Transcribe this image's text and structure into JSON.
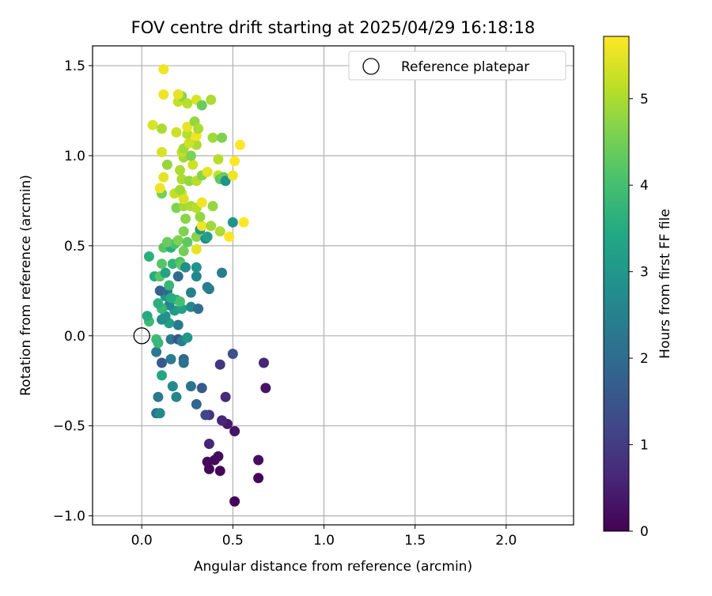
{
  "chart_data": {
    "type": "scatter",
    "title": "FOV centre drift starting at 2025/04/29 16:18:18",
    "xlabel": "Angular distance from reference (arcmin)",
    "ylabel": "Rotation from reference (arcmin)",
    "xlim": [
      -0.27,
      2.37
    ],
    "ylim": [
      -1.05,
      1.61
    ],
    "xticks": [
      0.0,
      0.5,
      1.0,
      1.5,
      2.0
    ],
    "xtick_labels": [
      "0.0",
      "0.5",
      "1.0",
      "1.5",
      "2.0"
    ],
    "yticks": [
      -1.0,
      -0.5,
      0.0,
      0.5,
      1.0,
      1.5
    ],
    "ytick_labels": [
      "−1.0",
      "−0.5",
      "0.0",
      "0.5",
      "1.0",
      "1.5"
    ],
    "grid": true,
    "legend": {
      "placement": "top-right",
      "entries": [
        {
          "label": "Reference platepar",
          "marker": "open-circle"
        }
      ]
    },
    "reference_point": {
      "x": 0.0,
      "y": 0.0
    },
    "colorbar": {
      "label": "Hours from first FF file",
      "colormap": "viridis",
      "range": [
        0,
        5.72
      ],
      "ticks": [
        0,
        1,
        2,
        3,
        4,
        5
      ],
      "tick_labels": [
        "0",
        "1",
        "2",
        "3",
        "4",
        "5"
      ]
    },
    "series": [
      {
        "points": [
          {
            "x": 0.51,
            "y": -0.92,
            "h": 0.05
          },
          {
            "x": 0.64,
            "y": -0.79,
            "h": 0.05
          },
          {
            "x": 0.37,
            "y": -0.74,
            "h": 0.08
          },
          {
            "x": 0.43,
            "y": -0.75,
            "h": 0.1
          },
          {
            "x": 0.36,
            "y": -0.7,
            "h": 0.12
          },
          {
            "x": 0.4,
            "y": -0.69,
            "h": 0.15
          },
          {
            "x": 0.42,
            "y": -0.67,
            "h": 0.2
          },
          {
            "x": 0.64,
            "y": -0.69,
            "h": 0.22
          },
          {
            "x": 0.37,
            "y": -0.6,
            "h": 0.6
          },
          {
            "x": 0.51,
            "y": -0.53,
            "h": 0.3
          },
          {
            "x": 0.47,
            "y": -0.49,
            "h": 0.4
          },
          {
            "x": 0.44,
            "y": -0.47,
            "h": 0.6
          },
          {
            "x": 0.37,
            "y": -0.44,
            "h": 0.8
          },
          {
            "x": 0.35,
            "y": -0.44,
            "h": 1.2
          },
          {
            "x": 0.46,
            "y": -0.34,
            "h": 0.7
          },
          {
            "x": 0.68,
            "y": -0.29,
            "h": 0.3
          },
          {
            "x": 0.67,
            "y": -0.15,
            "h": 0.6
          },
          {
            "x": 0.43,
            "y": -0.16,
            "h": 0.9
          },
          {
            "x": 0.5,
            "y": -0.1,
            "h": 1.4
          },
          {
            "x": 0.33,
            "y": -0.29,
            "h": 1.6
          },
          {
            "x": 0.27,
            "y": -0.28,
            "h": 2.2
          },
          {
            "x": 0.3,
            "y": -0.38,
            "h": 1.9
          },
          {
            "x": 0.19,
            "y": -0.34,
            "h": 2.6
          },
          {
            "x": 0.17,
            "y": -0.28,
            "h": 2.7
          },
          {
            "x": 0.09,
            "y": -0.34,
            "h": 2.3
          },
          {
            "x": 0.08,
            "y": -0.43,
            "h": 2.1
          },
          {
            "x": 0.1,
            "y": -0.43,
            "h": 2.7
          },
          {
            "x": 0.11,
            "y": -0.15,
            "h": 1.6
          },
          {
            "x": 0.16,
            "y": -0.13,
            "h": 2.4
          },
          {
            "x": 0.23,
            "y": -0.13,
            "h": 1.9
          },
          {
            "x": 0.23,
            "y": -0.15,
            "h": 2.2
          },
          {
            "x": 0.08,
            "y": -0.09,
            "h": 2.3
          },
          {
            "x": 0.11,
            "y": -0.22,
            "h": 3.4
          },
          {
            "x": 0.16,
            "y": -0.02,
            "h": 2.3
          },
          {
            "x": 0.2,
            "y": -0.02,
            "h": 1.5
          },
          {
            "x": 0.22,
            "y": -0.03,
            "h": 2.5
          },
          {
            "x": 0.25,
            "y": -0.01,
            "h": 3.0
          },
          {
            "x": 0.08,
            "y": -0.02,
            "h": 3.9
          },
          {
            "x": 0.09,
            "y": -0.04,
            "h": 3.8
          },
          {
            "x": 0.2,
            "y": 0.06,
            "h": 2.3
          },
          {
            "x": 0.15,
            "y": 0.07,
            "h": 3.2
          },
          {
            "x": 0.11,
            "y": 0.09,
            "h": 2.8
          },
          {
            "x": 0.04,
            "y": 0.08,
            "h": 3.9
          },
          {
            "x": 0.03,
            "y": 0.11,
            "h": 3.5
          },
          {
            "x": 0.13,
            "y": 0.11,
            "h": 2.9
          },
          {
            "x": 0.18,
            "y": 0.14,
            "h": 3.1
          },
          {
            "x": 0.22,
            "y": 0.15,
            "h": 3.3
          },
          {
            "x": 0.15,
            "y": 0.17,
            "h": 2.6
          },
          {
            "x": 0.27,
            "y": 0.16,
            "h": 2.7
          },
          {
            "x": 0.31,
            "y": 0.15,
            "h": 2.1
          },
          {
            "x": 0.11,
            "y": 0.15,
            "h": 3.8
          },
          {
            "x": 0.09,
            "y": 0.18,
            "h": 3.6
          },
          {
            "x": 0.19,
            "y": 0.2,
            "h": 3.7
          },
          {
            "x": 0.21,
            "y": 0.19,
            "h": 4.0
          },
          {
            "x": 0.13,
            "y": 0.22,
            "h": 3.0
          },
          {
            "x": 0.1,
            "y": 0.25,
            "h": 1.8
          },
          {
            "x": 0.14,
            "y": 0.25,
            "h": 2.0
          },
          {
            "x": 0.16,
            "y": 0.21,
            "h": 3.5
          },
          {
            "x": 0.27,
            "y": 0.24,
            "h": 2.5
          },
          {
            "x": 0.36,
            "y": 0.27,
            "h": 2.3
          },
          {
            "x": 0.37,
            "y": 0.26,
            "h": 2.4
          },
          {
            "x": 0.15,
            "y": 0.28,
            "h": 3.8
          },
          {
            "x": 0.07,
            "y": 0.33,
            "h": 3.5
          },
          {
            "x": 0.1,
            "y": 0.33,
            "h": 4.2
          },
          {
            "x": 0.13,
            "y": 0.35,
            "h": 3.3
          },
          {
            "x": 0.2,
            "y": 0.33,
            "h": 2.0
          },
          {
            "x": 0.3,
            "y": 0.33,
            "h": 2.6
          },
          {
            "x": 0.3,
            "y": 0.38,
            "h": 2.9
          },
          {
            "x": 0.44,
            "y": 0.35,
            "h": 2.4
          },
          {
            "x": 0.11,
            "y": 0.4,
            "h": 4.2
          },
          {
            "x": 0.17,
            "y": 0.4,
            "h": 3.7
          },
          {
            "x": 0.21,
            "y": 0.41,
            "h": 4.1
          },
          {
            "x": 0.22,
            "y": 0.39,
            "h": 4.3
          },
          {
            "x": 0.24,
            "y": 0.38,
            "h": 2.8
          },
          {
            "x": 0.04,
            "y": 0.44,
            "h": 3.6
          },
          {
            "x": 0.12,
            "y": 0.49,
            "h": 4.2
          },
          {
            "x": 0.16,
            "y": 0.49,
            "h": 3.6
          },
          {
            "x": 0.18,
            "y": 0.51,
            "h": 4.0
          },
          {
            "x": 0.14,
            "y": 0.52,
            "h": 4.4
          },
          {
            "x": 0.2,
            "y": 0.53,
            "h": 4.6
          },
          {
            "x": 0.23,
            "y": 0.47,
            "h": 4.5
          },
          {
            "x": 0.25,
            "y": 0.52,
            "h": 4.3
          },
          {
            "x": 0.3,
            "y": 0.55,
            "h": 4.7
          },
          {
            "x": 0.35,
            "y": 0.54,
            "h": 2.6
          },
          {
            "x": 0.36,
            "y": 0.55,
            "h": 3.2
          },
          {
            "x": 0.32,
            "y": 0.59,
            "h": 3.0
          },
          {
            "x": 0.23,
            "y": 0.58,
            "h": 4.6
          },
          {
            "x": 0.3,
            "y": 0.48,
            "h": 5.5
          },
          {
            "x": 0.33,
            "y": 0.61,
            "h": 5.6
          },
          {
            "x": 0.32,
            "y": 0.66,
            "h": 4.8
          },
          {
            "x": 0.38,
            "y": 0.61,
            "h": 4.9
          },
          {
            "x": 0.43,
            "y": 0.58,
            "h": 5.0
          },
          {
            "x": 0.48,
            "y": 0.55,
            "h": 5.7
          },
          {
            "x": 0.5,
            "y": 0.63,
            "h": 2.9
          },
          {
            "x": 0.56,
            "y": 0.63,
            "h": 5.7
          },
          {
            "x": 0.24,
            "y": 0.65,
            "h": 4.7
          },
          {
            "x": 0.19,
            "y": 0.71,
            "h": 4.6
          },
          {
            "x": 0.23,
            "y": 0.72,
            "h": 4.9
          },
          {
            "x": 0.27,
            "y": 0.72,
            "h": 5.0
          },
          {
            "x": 0.3,
            "y": 0.71,
            "h": 5.1
          },
          {
            "x": 0.33,
            "y": 0.74,
            "h": 5.6
          },
          {
            "x": 0.39,
            "y": 0.72,
            "h": 4.8
          },
          {
            "x": 0.22,
            "y": 0.79,
            "h": 5.3
          },
          {
            "x": 0.23,
            "y": 0.76,
            "h": 5.4
          },
          {
            "x": 0.18,
            "y": 0.79,
            "h": 5.2
          },
          {
            "x": 0.21,
            "y": 0.81,
            "h": 4.9
          },
          {
            "x": 0.11,
            "y": 0.79,
            "h": 4.5
          },
          {
            "x": 0.1,
            "y": 0.82,
            "h": 5.6
          },
          {
            "x": 0.22,
            "y": 0.87,
            "h": 5.0
          },
          {
            "x": 0.26,
            "y": 0.86,
            "h": 4.8
          },
          {
            "x": 0.3,
            "y": 0.86,
            "h": 5.1
          },
          {
            "x": 0.33,
            "y": 0.89,
            "h": 4.7
          },
          {
            "x": 0.36,
            "y": 0.91,
            "h": 5.5
          },
          {
            "x": 0.42,
            "y": 0.89,
            "h": 5.2
          },
          {
            "x": 0.43,
            "y": 0.87,
            "h": 4.3
          },
          {
            "x": 0.45,
            "y": 0.88,
            "h": 4.4
          },
          {
            "x": 0.46,
            "y": 0.86,
            "h": 2.9
          },
          {
            "x": 0.5,
            "y": 0.89,
            "h": 5.6
          },
          {
            "x": 0.12,
            "y": 0.88,
            "h": 5.5
          },
          {
            "x": 0.21,
            "y": 0.92,
            "h": 5.0
          },
          {
            "x": 0.28,
            "y": 0.95,
            "h": 5.3
          },
          {
            "x": 0.14,
            "y": 0.95,
            "h": 4.8
          },
          {
            "x": 0.23,
            "y": 0.99,
            "h": 4.9
          },
          {
            "x": 0.27,
            "y": 1.0,
            "h": 4.6
          },
          {
            "x": 0.42,
            "y": 0.98,
            "h": 5.1
          },
          {
            "x": 0.51,
            "y": 0.97,
            "h": 5.7
          },
          {
            "x": 0.11,
            "y": 1.02,
            "h": 5.4
          },
          {
            "x": 0.22,
            "y": 1.02,
            "h": 5.2
          },
          {
            "x": 0.23,
            "y": 1.04,
            "h": 4.9
          },
          {
            "x": 0.3,
            "y": 1.06,
            "h": 5.0
          },
          {
            "x": 0.26,
            "y": 1.07,
            "h": 5.3
          },
          {
            "x": 0.54,
            "y": 1.06,
            "h": 5.7
          },
          {
            "x": 0.19,
            "y": 1.13,
            "h": 5.3
          },
          {
            "x": 0.25,
            "y": 1.12,
            "h": 5.1
          },
          {
            "x": 0.3,
            "y": 1.11,
            "h": 5.6
          },
          {
            "x": 0.39,
            "y": 1.1,
            "h": 4.9
          },
          {
            "x": 0.44,
            "y": 1.1,
            "h": 4.6
          },
          {
            "x": 0.06,
            "y": 1.17,
            "h": 5.4
          },
          {
            "x": 0.11,
            "y": 1.15,
            "h": 5.0
          },
          {
            "x": 0.25,
            "y": 1.16,
            "h": 5.5
          },
          {
            "x": 0.29,
            "y": 1.19,
            "h": 4.8
          },
          {
            "x": 0.31,
            "y": 1.15,
            "h": 5.0
          },
          {
            "x": 0.2,
            "y": 1.3,
            "h": 5.2
          },
          {
            "x": 0.22,
            "y": 1.33,
            "h": 4.7
          },
          {
            "x": 0.2,
            "y": 1.34,
            "h": 5.5
          },
          {
            "x": 0.25,
            "y": 1.29,
            "h": 5.1
          },
          {
            "x": 0.3,
            "y": 1.31,
            "h": 5.4
          },
          {
            "x": 0.33,
            "y": 1.28,
            "h": 4.4
          },
          {
            "x": 0.38,
            "y": 1.31,
            "h": 5.0
          },
          {
            "x": 0.12,
            "y": 1.34,
            "h": 5.6
          },
          {
            "x": 0.12,
            "y": 1.48,
            "h": 5.6
          }
        ]
      }
    ]
  }
}
